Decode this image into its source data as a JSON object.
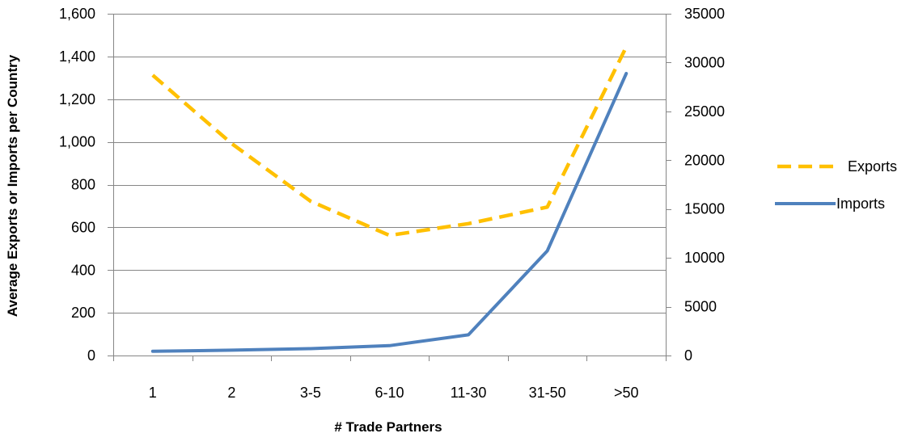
{
  "chart_data": {
    "type": "line",
    "title": "",
    "xlabel": "# Trade Partners",
    "ylabel": "Average Exports or Imports per Country",
    "y2label": "",
    "categories": [
      "1",
      "2",
      "3-5",
      "6-10",
      "11-30",
      "31-50",
      ">50"
    ],
    "y_left": {
      "range": [
        0,
        1600
      ],
      "ticks": [
        0,
        200,
        400,
        600,
        800,
        1000,
        1200,
        1400,
        1600
      ],
      "tick_labels": [
        "0",
        "200",
        "400",
        "600",
        "800",
        "1,000",
        "1,200",
        "1,400",
        "1,600"
      ]
    },
    "y_right": {
      "range": [
        0,
        35000
      ],
      "ticks": [
        0,
        5000,
        10000,
        15000,
        20000,
        25000,
        30000,
        35000
      ],
      "tick_labels": [
        "0",
        "5000",
        "10000",
        "15000",
        "20000",
        "25000",
        "30000",
        "35000"
      ]
    },
    "series": [
      {
        "name": "Exports",
        "axis": "right",
        "style": "dashed",
        "color": "#FFC000",
        "values": [
          28700,
          21700,
          15800,
          12300,
          13500,
          15200,
          31600
        ]
      },
      {
        "name": "Imports",
        "axis": "left",
        "style": "solid",
        "color": "#4F81BD",
        "values": [
          20,
          25,
          32,
          46,
          97,
          490,
          1320
        ]
      }
    ],
    "grid": {
      "horizontal": true,
      "vertical": false
    },
    "legend_position": "right"
  }
}
